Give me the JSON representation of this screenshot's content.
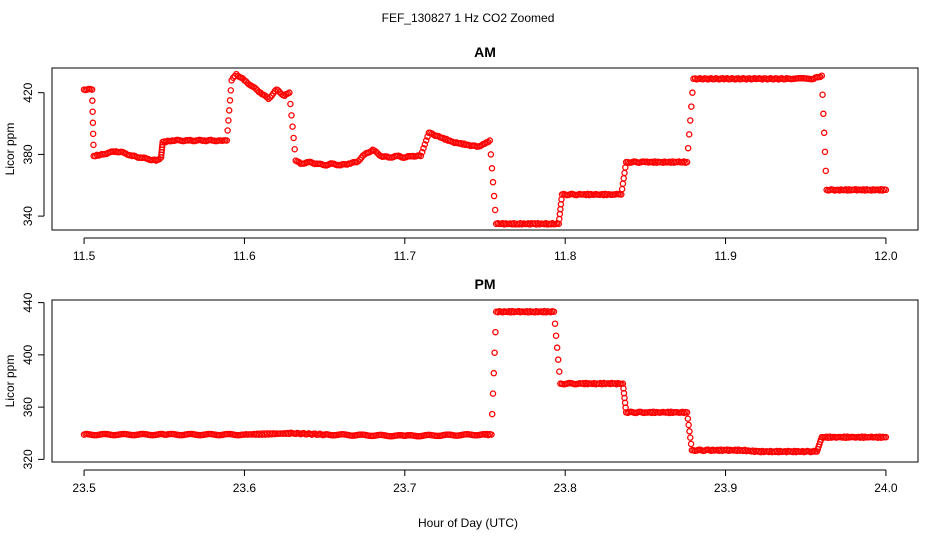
{
  "figure": {
    "title": "FEF_130827  1 Hz CO2 Zoomed",
    "xlabel": "Hour of Day (UTC)"
  },
  "colors": {
    "points": "#ff0000",
    "axes": "#000000",
    "background": "#ffffff"
  },
  "chart_data": [
    {
      "type": "scatter",
      "title": "AM",
      "ylabel": "Licor ppm",
      "xlim": [
        11.48,
        12.02
      ],
      "ylim": [
        331,
        436
      ],
      "xticks": [
        "11.5",
        "11.6",
        "11.7",
        "11.8",
        "11.9",
        "12.0"
      ],
      "yticks": [
        "340",
        "380",
        "420"
      ],
      "grid": false,
      "series": [
        {
          "marker": "open-circle",
          "segments": [
            {
              "x": [
                11.5,
                11.505
              ],
              "y": [
                422,
                422
              ]
            },
            {
              "x": [
                11.506,
                11.512,
                11.515,
                11.52,
                11.525,
                11.53,
                11.535,
                11.54,
                11.545,
                11.548
              ],
              "y": [
                379,
                380,
                381,
                382,
                381,
                379,
                378,
                377,
                376,
                378
              ]
            },
            {
              "x": [
                11.549,
                11.555,
                11.56,
                11.565,
                11.57,
                11.575,
                11.58,
                11.585,
                11.589
              ],
              "y": [
                388,
                389,
                389,
                389,
                389,
                389,
                389,
                389,
                389
              ]
            },
            {
              "x": [
                11.592,
                11.595,
                11.6,
                11.605,
                11.61,
                11.615,
                11.62,
                11.625,
                11.628
              ],
              "y": [
                428,
                432,
                428,
                424,
                420,
                416,
                422,
                418,
                420
              ]
            },
            {
              "x": [
                11.632,
                11.635,
                11.64,
                11.645,
                11.65,
                11.655,
                11.66,
                11.665,
                11.67,
                11.675,
                11.68,
                11.685,
                11.69,
                11.695,
                11.7,
                11.705,
                11.71
              ],
              "y": [
                376,
                374,
                375,
                374,
                373,
                374,
                373,
                374,
                375,
                380,
                383,
                379,
                378,
                379,
                378,
                379,
                379
              ]
            },
            {
              "x": [
                11.715,
                11.72,
                11.73,
                11.74,
                11.745,
                11.75,
                11.753
              ],
              "y": [
                394,
                392,
                388,
                386,
                385,
                387,
                389
              ]
            },
            {
              "x": [
                11.757,
                11.76,
                11.77,
                11.78,
                11.79,
                11.796
              ],
              "y": [
                335,
                335,
                335,
                335,
                335,
                335
              ]
            },
            {
              "x": [
                11.798,
                11.81,
                11.82,
                11.83,
                11.835
              ],
              "y": [
                354,
                354,
                354,
                354,
                354
              ]
            },
            {
              "x": [
                11.838,
                11.85,
                11.86,
                11.87,
                11.876
              ],
              "y": [
                375,
                375,
                375,
                375,
                375
              ]
            },
            {
              "x": [
                11.88,
                11.9,
                11.92,
                11.94,
                11.955,
                11.96
              ],
              "y": [
                429,
                429,
                429,
                429,
                429,
                431
              ]
            },
            {
              "x": [
                11.963,
                11.97,
                11.98,
                11.99,
                12.0
              ],
              "y": [
                357,
                357,
                357,
                357,
                357
              ]
            }
          ]
        }
      ]
    },
    {
      "type": "scatter",
      "title": "PM",
      "ylabel": "Licor ppm",
      "xlim": [
        23.48,
        24.02
      ],
      "ylim": [
        318,
        442
      ],
      "xticks": [
        "23.5",
        "23.6",
        "23.7",
        "23.8",
        "23.9",
        "24.0"
      ],
      "yticks": [
        "320",
        "360",
        "400",
        "440"
      ],
      "grid": false,
      "series": [
        {
          "marker": "open-circle",
          "segments": [
            {
              "x": [
                23.5,
                23.55,
                23.6,
                23.63,
                23.65,
                23.7,
                23.75,
                23.754
              ],
              "y": [
                339,
                339,
                339,
                340,
                339,
                338,
                339,
                339
              ]
            },
            {
              "x": [
                23.757,
                23.76,
                23.77,
                23.78,
                23.79,
                23.793
              ],
              "y": [
                433,
                433,
                433,
                433,
                433,
                433
              ]
            },
            {
              "x": [
                23.797,
                23.81,
                23.82,
                23.83,
                23.836
              ],
              "y": [
                378,
                378,
                378,
                378,
                378
              ]
            },
            {
              "x": [
                23.838,
                23.85,
                23.86,
                23.87,
                23.876
              ],
              "y": [
                356,
                356,
                356,
                356,
                356
              ]
            },
            {
              "x": [
                23.879,
                23.89,
                23.9,
                23.91,
                23.92,
                23.93,
                23.94,
                23.95,
                23.957
              ],
              "y": [
                327,
                327,
                327,
                327,
                326,
                326,
                326,
                326,
                326
              ]
            },
            {
              "x": [
                23.96,
                23.97,
                23.98,
                23.99,
                24.0
              ],
              "y": [
                337,
                337,
                337,
                337,
                337
              ]
            }
          ]
        }
      ]
    }
  ]
}
